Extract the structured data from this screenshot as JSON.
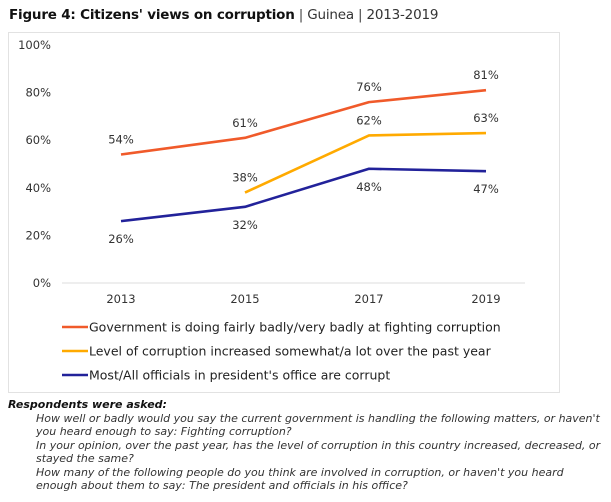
{
  "figure": {
    "title_bold": "Figure 4: Citizens' views on corruption",
    "separator": "|",
    "country": "Guinea",
    "period": "2013-2019"
  },
  "chart_data": {
    "type": "line",
    "title": "Citizens' views on corruption",
    "subtitle": "Guinea | 2013-2019",
    "xlabel": "",
    "ylabel": "",
    "x": [
      "2013",
      "2015",
      "2017",
      "2019"
    ],
    "ylim": [
      0,
      100
    ],
    "yticks": [
      0,
      20,
      40,
      60,
      80,
      100
    ],
    "ytick_labels": [
      "0%",
      "20%",
      "40%",
      "60%",
      "80%",
      "100%"
    ],
    "grid": false,
    "legend_position": "bottom",
    "series": [
      {
        "name": "Government is doing fairly badly/very badly at fighting corruption",
        "color": "#f05a2a",
        "values": [
          54,
          61,
          76,
          81
        ],
        "labels": [
          "54%",
          "61%",
          "76%",
          "81%"
        ],
        "label_position": "above"
      },
      {
        "name": "Level of corruption increased somewhat/a lot over the past year",
        "color": "#ffaa00",
        "values": [
          null,
          38,
          62,
          63
        ],
        "labels": [
          null,
          "38%",
          "62%",
          "63%"
        ],
        "label_position": "above"
      },
      {
        "name": "Most/All officials in president's office are corrupt",
        "color": "#22229a",
        "values": [
          26,
          32,
          48,
          47
        ],
        "labels": [
          "26%",
          "32%",
          "48%",
          "47%"
        ],
        "label_position": "below"
      }
    ]
  },
  "notes": {
    "heading": "Respondents were asked:",
    "questions": [
      "How well or badly would you say the current government is handling the following matters, or haven't you heard enough to say: Fighting corruption?",
      "In your opinion, over the past year, has the level of corruption in this country increased, decreased, or stayed the same?",
      "How many of the following people do you think are involved in corruption, or haven't you heard enough about them to say: The president and officials in his office?"
    ]
  }
}
